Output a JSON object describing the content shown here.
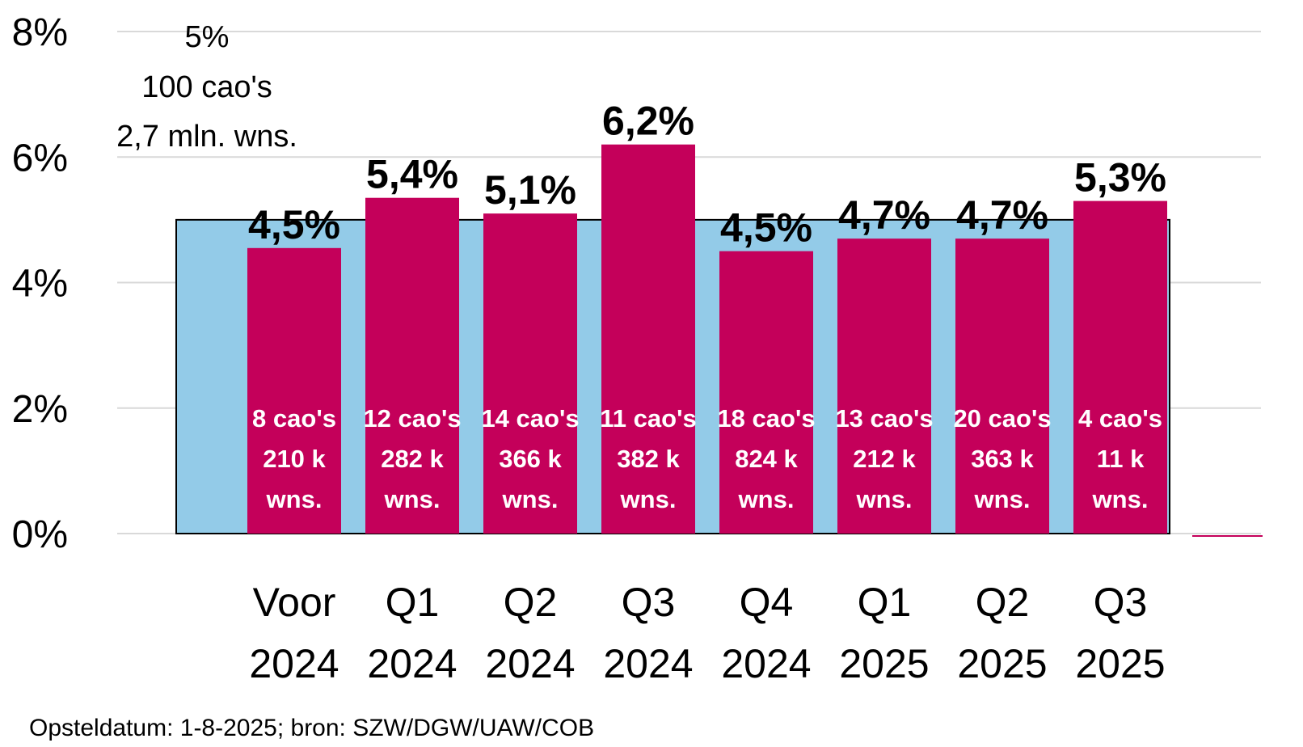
{
  "chart_data": {
    "type": "bar",
    "categories": [
      [
        "Voor",
        "2024"
      ],
      [
        "Q1",
        "2024"
      ],
      [
        "Q2",
        "2024"
      ],
      [
        "Q3",
        "2024"
      ],
      [
        "Q4",
        "2024"
      ],
      [
        "Q1",
        "2025"
      ],
      [
        "Q2",
        "2025"
      ],
      [
        "Q3",
        "2025"
      ]
    ],
    "values": [
      4.55,
      5.35,
      5.1,
      6.2,
      4.5,
      4.7,
      4.7,
      5.3
    ],
    "value_labels": [
      "4,5%",
      "5,4%",
      "5,1%",
      "6,2%",
      "4,5%",
      "4,7%",
      "4,7%",
      "5,3%"
    ],
    "bar_notes": [
      [
        "8 cao's",
        "210 k",
        "wns."
      ],
      [
        "12 cao's",
        "282 k",
        "wns."
      ],
      [
        "14 cao's",
        "366 k",
        "wns."
      ],
      [
        "11 cao's",
        "382 k",
        "wns."
      ],
      [
        "18 cao's",
        "824 k",
        "wns."
      ],
      [
        "13 cao's",
        "212 k",
        "wns."
      ],
      [
        "20 cao's",
        "363 k",
        "wns."
      ],
      [
        "4 cao's",
        "11 k",
        "wns."
      ]
    ],
    "reference": {
      "value": 5.0,
      "label_lines": [
        "5%",
        "100 cao's",
        "2,7 mln. wns."
      ],
      "color": "#93cbe8"
    },
    "yticks": [
      "0%",
      "2%",
      "4%",
      "6%",
      "8%"
    ],
    "ytick_values": [
      0,
      2,
      4,
      6,
      8
    ],
    "ylim": [
      0,
      8
    ],
    "bar_color": "#c4005a",
    "grid": true,
    "title": "",
    "xlabel": "",
    "ylabel": ""
  },
  "footer": "Opsteldatum: 1-8-2025; bron: SZW/DGW/UAW/COB"
}
